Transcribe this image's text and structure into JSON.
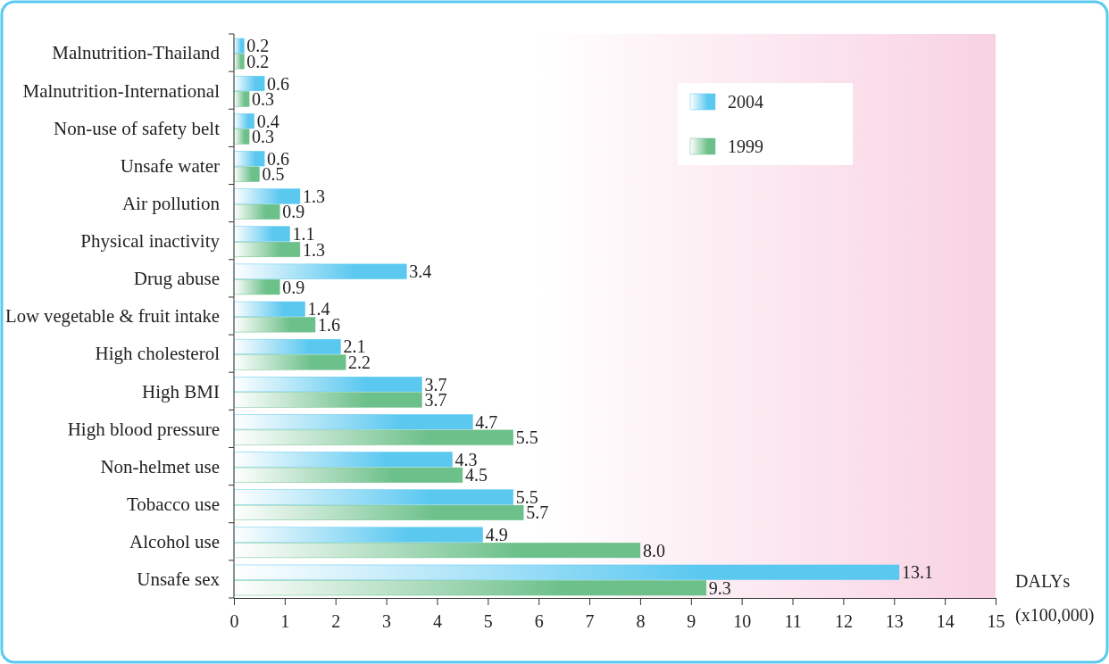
{
  "chart_data": {
    "type": "bar",
    "orientation": "horizontal",
    "xlabel": "DALYs (x100,000)",
    "categories": [
      "Malnutrition-Thailand",
      "Malnutrition-International",
      "Non-use of safety belt",
      "Unsafe water",
      "Air pollution",
      "Physical inactivity",
      "Drug abuse",
      "Low vegetable & fruit intake",
      "High cholesterol",
      "High BMI",
      "High blood pressure",
      "Non-helmet use",
      "Tobacco use",
      "Alcohol use",
      "Unsafe sex"
    ],
    "series": [
      {
        "name": "2004",
        "color": "#5bc8f0",
        "values": [
          0.2,
          0.6,
          0.4,
          0.6,
          1.3,
          1.1,
          3.4,
          1.4,
          2.1,
          3.7,
          4.7,
          4.3,
          5.5,
          4.9,
          13.1
        ],
        "value_labels": [
          "0.2",
          "0.6",
          "0.4",
          "0.6",
          "1.3",
          "1.1",
          "3.4",
          "1.4",
          "2.1",
          "3.7",
          "4.7",
          "4.3",
          "5.5",
          "4.9",
          "13.1"
        ]
      },
      {
        "name": "1999",
        "color": "#6cc08a",
        "values": [
          0.2,
          0.3,
          0.3,
          0.5,
          0.9,
          1.3,
          0.9,
          1.6,
          2.2,
          3.7,
          5.5,
          4.5,
          5.7,
          8.0,
          9.3
        ],
        "value_labels": [
          "0.2",
          "0.3",
          "0.3",
          "0.5",
          "0.9",
          "1.3",
          "0.9",
          "1.6",
          "2.2",
          "3.7",
          "5.5",
          "4.5",
          "5.7",
          "8.0",
          "9.3"
        ]
      }
    ],
    "xlim": [
      0,
      15
    ],
    "xticks": [
      0,
      1,
      2,
      3,
      4,
      5,
      6,
      7,
      8,
      9,
      10,
      11,
      12,
      13,
      14,
      15
    ],
    "grid": false,
    "legend": "top right"
  }
}
